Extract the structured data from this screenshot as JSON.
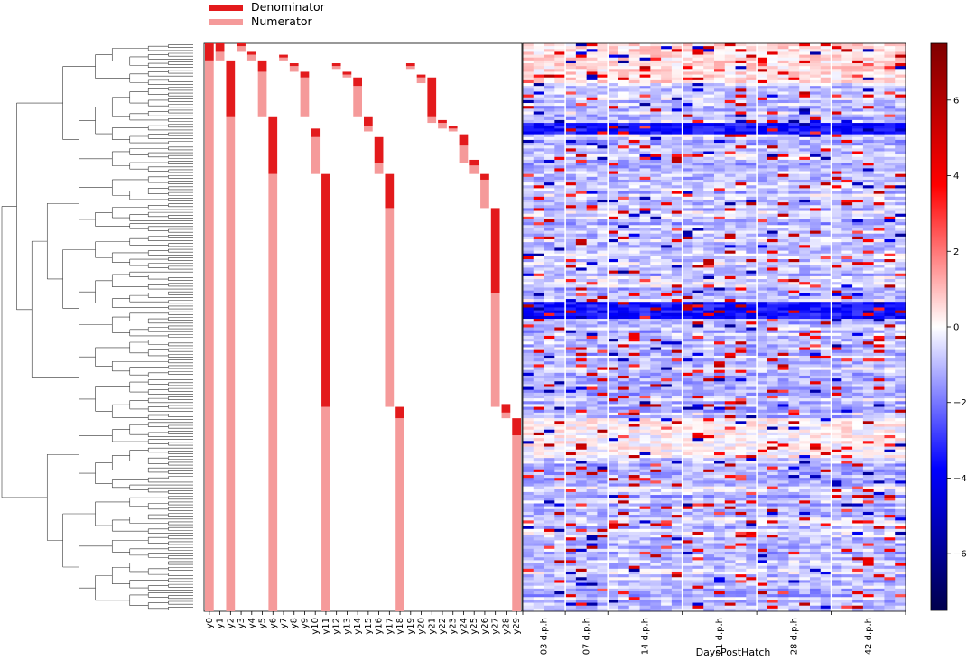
{
  "chart_data": {
    "type": "heatmap",
    "title": "",
    "legend": {
      "position": "top-left",
      "entries": [
        {
          "label": "Denominator",
          "color": "#e31a1c"
        },
        {
          "label": "Numerator",
          "color": "#f59a9a"
        }
      ]
    },
    "balance_columns": [
      "y0",
      "y1",
      "y2",
      "y3",
      "y4",
      "y5",
      "y6",
      "y7",
      "y8",
      "y9",
      "y10",
      "y11",
      "y12",
      "y13",
      "y14",
      "y15",
      "y16",
      "y17",
      "y18",
      "y19",
      "y20",
      "y21",
      "y22",
      "y23",
      "y24",
      "y25",
      "y26",
      "y27",
      "y28",
      "y29"
    ],
    "balance_num_rows": 200,
    "balances": [
      {
        "den": [
          0,
          6
        ],
        "num": [
          6,
          200
        ]
      },
      {
        "den": [
          0,
          3
        ],
        "num": [
          3,
          6
        ]
      },
      {
        "den": [
          6,
          26
        ],
        "num": [
          26,
          200
        ]
      },
      {
        "den": [
          0,
          1
        ],
        "num": [
          1,
          3
        ]
      },
      {
        "den": [
          3,
          4
        ],
        "num": [
          4,
          6
        ]
      },
      {
        "den": [
          6,
          10
        ],
        "num": [
          10,
          26
        ]
      },
      {
        "den": [
          26,
          46
        ],
        "num": [
          46,
          200
        ]
      },
      {
        "den": [
          4,
          5
        ],
        "num": [
          5,
          6
        ]
      },
      {
        "den": [
          7,
          8
        ],
        "num": [
          8,
          10
        ]
      },
      {
        "den": [
          10,
          12
        ],
        "num": [
          12,
          26
        ]
      },
      {
        "den": [
          30,
          33
        ],
        "num": [
          33,
          46
        ]
      },
      {
        "den": [
          46,
          128
        ],
        "num": [
          128,
          200
        ]
      },
      {
        "den": [
          7,
          8
        ],
        "num": [
          8,
          9
        ]
      },
      {
        "den": [
          10,
          11
        ],
        "num": [
          11,
          12
        ]
      },
      {
        "den": [
          12,
          15
        ],
        "num": [
          15,
          26
        ]
      },
      {
        "den": [
          26,
          29
        ],
        "num": [
          29,
          31
        ]
      },
      {
        "den": [
          33,
          42
        ],
        "num": [
          42,
          46
        ]
      },
      {
        "den": [
          46,
          58
        ],
        "num": [
          58,
          128
        ]
      },
      {
        "den": [
          128,
          132
        ],
        "num": [
          132,
          200
        ]
      },
      {
        "den": [
          7,
          8
        ],
        "num": [
          8,
          9
        ]
      },
      {
        "den": [
          11,
          12
        ],
        "num": [
          12,
          14
        ]
      },
      {
        "den": [
          12,
          26
        ],
        "num": [
          26,
          28
        ]
      },
      {
        "den": [
          27,
          28
        ],
        "num": [
          28,
          30
        ]
      },
      {
        "den": [
          29,
          30
        ],
        "num": [
          30,
          31
        ]
      },
      {
        "den": [
          32,
          36
        ],
        "num": [
          36,
          42
        ]
      },
      {
        "den": [
          41,
          43
        ],
        "num": [
          43,
          46
        ]
      },
      {
        "den": [
          46,
          48
        ],
        "num": [
          48,
          58
        ]
      },
      {
        "den": [
          58,
          88
        ],
        "num": [
          88,
          128
        ]
      },
      {
        "den": [
          127,
          130
        ],
        "num": [
          130,
          132
        ]
      },
      {
        "den": [
          132,
          138
        ],
        "num": [
          138,
          200
        ]
      }
    ],
    "heatmap_x_groups": [
      "03 d.p.h",
      "07 d.p.h",
      "14 d.p.h",
      "21 d.p.h",
      "28 d.p.h",
      "42 d.p.h"
    ],
    "heatmap_columns_per_group": [
      4,
      4,
      7,
      7,
      7,
      7
    ],
    "heatmap_rows": 200,
    "xlabel": "DaysPostHatch",
    "colorbar": {
      "cmap": "seismic",
      "range": [
        -7.5,
        7.5
      ],
      "ticks": [
        "6",
        "4",
        "2",
        "0",
        "−2",
        "−4",
        "−6"
      ],
      "tick_values": [
        6,
        4,
        2,
        0,
        -2,
        -4,
        -6
      ]
    },
    "random_seed": 1729
  }
}
